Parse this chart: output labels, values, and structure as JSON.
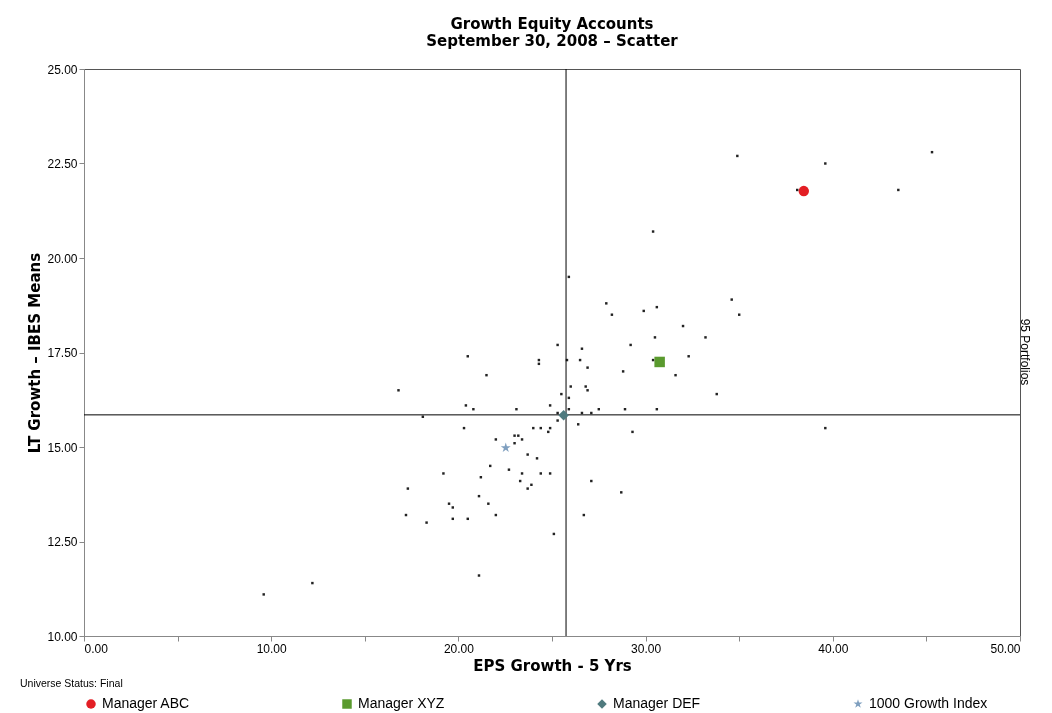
{
  "chart_data": {
    "type": "scatter",
    "title": "Growth Equity Accounts",
    "subtitle": "September 30, 2008 – Scatter",
    "xlabel": "EPS Growth - 5 Yrs",
    "ylabel": "LT Growth – IBES Means",
    "y2label": "95 Portfolios",
    "annotations": [
      "Universe Status: Final"
    ],
    "xlim": [
      0,
      50
    ],
    "ylim": [
      10,
      25
    ],
    "xticks": [
      {
        "value": 0,
        "label": "0.00"
      },
      {
        "value": 5,
        "label": null
      },
      {
        "value": 10,
        "label": "10.00"
      },
      {
        "value": 15,
        "label": null
      },
      {
        "value": 20,
        "label": "20.00"
      },
      {
        "value": 25,
        "label": null
      },
      {
        "value": 30,
        "label": "30.00"
      },
      {
        "value": 35,
        "label": null
      },
      {
        "value": 40,
        "label": "40.00"
      },
      {
        "value": 45,
        "label": null
      },
      {
        "value": 50,
        "label": "50.00"
      }
    ],
    "yticks": [
      {
        "value": 10,
        "label": "10.00"
      },
      {
        "value": 12.5,
        "label": "12.50"
      },
      {
        "value": 15,
        "label": "15.00"
      },
      {
        "value": 17.5,
        "label": "17.50"
      },
      {
        "value": 20,
        "label": "20.00"
      },
      {
        "value": 22.5,
        "label": "22.50"
      },
      {
        "value": 25,
        "label": "25.00"
      }
    ],
    "ref_lines": [
      {
        "axis": "x",
        "value": 25.75,
        "color": "#000000"
      },
      {
        "axis": "y",
        "value": 15.85,
        "color": "#000000"
      }
    ],
    "legend": "bottom",
    "grid": false,
    "series": [
      {
        "color": "#222222",
        "marker": "square",
        "x": [
          9.6,
          12.2,
          21.1,
          25.3,
          20.5,
          24.3,
          24.3,
          25.8,
          21.5,
          16.8,
          26.0,
          25.5,
          25.9,
          20.4,
          20.8,
          23.1,
          24.9,
          25.9,
          25.3,
          18.1,
          25.3,
          26.4,
          20.3,
          24.0,
          24.4,
          24.8,
          24.9,
          22.0,
          23.0,
          23.2,
          23.4,
          23.0,
          23.7,
          24.2,
          21.7,
          22.7,
          23.4,
          24.4,
          24.9,
          19.2,
          21.2,
          23.3,
          23.9,
          23.7,
          17.3,
          21.1,
          21.6,
          19.5,
          19.7,
          22.0,
          17.2,
          19.7,
          20.5,
          18.3,
          25.1,
          25.9,
          27.9,
          28.2,
          29.9,
          30.6,
          34.6,
          35.0,
          32.0,
          33.2,
          30.5,
          29.2,
          26.6,
          26.5,
          26.9,
          30.4,
          32.3,
          28.8,
          31.6,
          26.8,
          26.9,
          33.8,
          27.5,
          28.9,
          30.6,
          27.1,
          26.6,
          29.3,
          27.1,
          28.7,
          26.7,
          34.9,
          39.6,
          45.3,
          43.5,
          38.1,
          30.4,
          39.6
        ],
        "values": [
          11.1,
          11.4,
          11.6,
          17.7,
          17.4,
          17.3,
          17.2,
          17.3,
          16.9,
          16.5,
          16.6,
          16.4,
          16.3,
          16.1,
          16.0,
          16.0,
          16.1,
          16.0,
          15.9,
          15.8,
          15.7,
          15.6,
          15.5,
          15.5,
          15.5,
          15.4,
          15.5,
          15.2,
          15.3,
          15.3,
          15.2,
          15.1,
          14.8,
          14.7,
          14.5,
          14.4,
          14.3,
          14.3,
          14.3,
          14.3,
          14.2,
          14.1,
          14.0,
          13.9,
          13.9,
          13.7,
          13.5,
          13.5,
          13.4,
          13.2,
          13.2,
          13.1,
          13.1,
          13.0,
          12.7,
          19.5,
          18.8,
          18.5,
          18.6,
          18.7,
          18.9,
          18.5,
          18.2,
          17.9,
          17.9,
          17.7,
          17.6,
          17.3,
          17.1,
          17.3,
          17.4,
          17.0,
          16.9,
          16.6,
          16.5,
          16.4,
          16.0,
          16.0,
          16.0,
          15.9,
          15.9,
          15.4,
          14.1,
          13.8,
          13.2,
          22.7,
          22.5,
          22.8,
          21.8,
          21.8,
          20.7,
          15.5
        ]
      },
      {
        "name": "Manager ABC",
        "color": "#e31e24",
        "marker": "circle",
        "x": [
          38.45
        ],
        "values": [
          21.77
        ]
      },
      {
        "name": "Manager XYZ",
        "color": "#5a9a2e",
        "marker": "square",
        "x": [
          30.75
        ],
        "values": [
          17.25
        ]
      },
      {
        "name": "Manager DEF",
        "color": "#4f7a7e",
        "marker": "diamond",
        "x": [
          25.62
        ],
        "values": [
          15.84
        ]
      },
      {
        "name": "1000 Growth Index",
        "color": "#7f9fbf",
        "marker": "star",
        "x": [
          22.53
        ],
        "values": [
          14.98
        ]
      }
    ]
  }
}
